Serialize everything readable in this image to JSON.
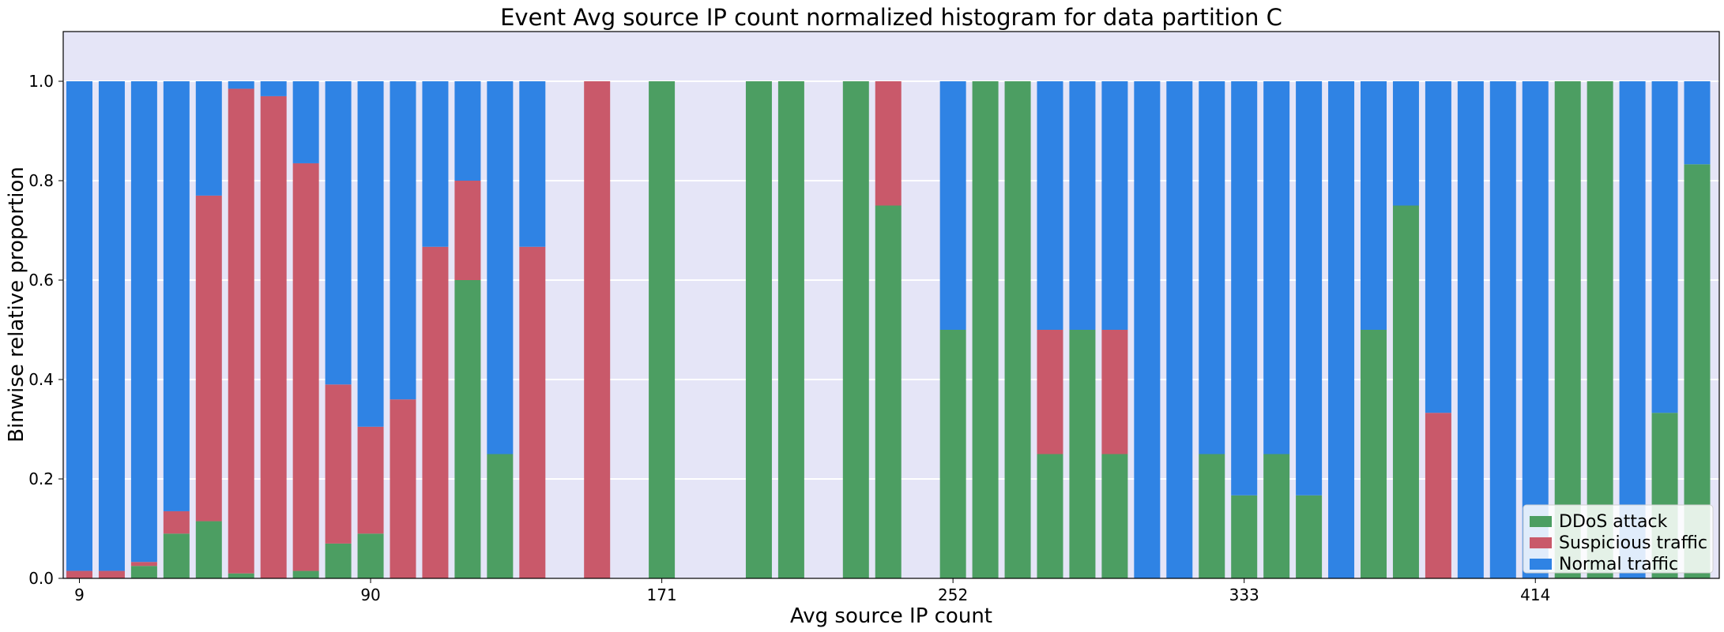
{
  "chart_data": {
    "type": "bar",
    "stacked": true,
    "title": "Event Avg source IP count normalized histogram for data partition C",
    "xlabel": "Avg source IP count",
    "ylabel": "Binwise relative proportion",
    "ylim": [
      0,
      1.1
    ],
    "yticks": [
      "0.0",
      "0.2",
      "0.4",
      "0.6",
      "0.8",
      "1.0"
    ],
    "xticks": [
      "9",
      "90",
      "171",
      "252",
      "333",
      "414"
    ],
    "grid": true,
    "legend_position": "bottom-right",
    "x": [
      9,
      18,
      27,
      36,
      45,
      54,
      63,
      72,
      81,
      90,
      99,
      108,
      117,
      126,
      135,
      144,
      153,
      162,
      171,
      180,
      189,
      198,
      207,
      216,
      225,
      234,
      243,
      252,
      261,
      270,
      279,
      288,
      297,
      306,
      315,
      324,
      333,
      342,
      351,
      360,
      369,
      378,
      387,
      396,
      405,
      414,
      423,
      432,
      441,
      450,
      459
    ],
    "series": [
      {
        "name": "DDoS attack",
        "color": "#4c9e62",
        "values": [
          0,
          0,
          0.025,
          0.09,
          0.115,
          0.01,
          0,
          0.015,
          0.07,
          0.09,
          0,
          0,
          0.6,
          0.25,
          0,
          0,
          0,
          0,
          1.0,
          0,
          0,
          1.0,
          1.0,
          0,
          1.0,
          0.75,
          0,
          0.5,
          1.0,
          1.0,
          0.25,
          0.5,
          0.25,
          0,
          0,
          0.25,
          0.167,
          0.25,
          0.167,
          0,
          0.5,
          0.75,
          0,
          0,
          0,
          0,
          1.0,
          1.0,
          0,
          0.333,
          0.833
        ]
      },
      {
        "name": "Suspicious traffic",
        "color": "#c9596a",
        "values": [
          0.015,
          0.015,
          0.008,
          0.045,
          0.655,
          0.975,
          0.97,
          0.82,
          0.32,
          0.215,
          0.36,
          0.667,
          0.2,
          0,
          0.667,
          0,
          1.0,
          0,
          0,
          0,
          0,
          0,
          0,
          0,
          0,
          0.25,
          0,
          0,
          0,
          0,
          0.25,
          0,
          0.25,
          0,
          0,
          0,
          0,
          0,
          0,
          0,
          0,
          0,
          0.333,
          0,
          0,
          0,
          0,
          0,
          0,
          0,
          0
        ]
      },
      {
        "name": "Normal traffic",
        "color": "#2f83e4",
        "values": [
          0.985,
          0.985,
          0.967,
          0.865,
          0.23,
          0.015,
          0.03,
          0.165,
          0.61,
          0.695,
          0.64,
          0.333,
          0.2,
          0.75,
          0.333,
          0,
          0,
          0,
          0,
          0,
          0,
          0,
          0,
          0,
          0,
          0,
          0,
          0.5,
          0,
          0,
          0.5,
          0.5,
          0.5,
          1.0,
          1.0,
          0.75,
          0.833,
          0.75,
          0.833,
          1.0,
          0.5,
          0.25,
          0.667,
          1.0,
          1.0,
          1.0,
          0,
          0,
          1.0,
          0.667,
          0.167
        ]
      }
    ]
  }
}
